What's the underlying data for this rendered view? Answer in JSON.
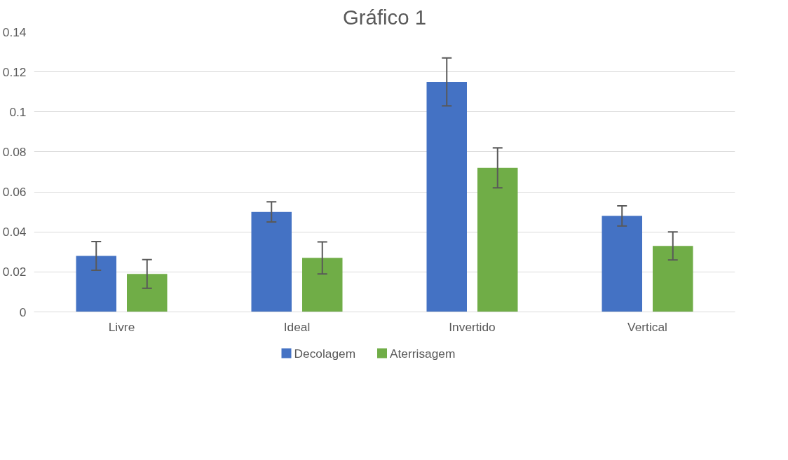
{
  "chart_data": {
    "type": "bar",
    "title": "Gráfico 1",
    "categories": [
      "Livre",
      "Ideal",
      "Invertido",
      "Vertical"
    ],
    "series": [
      {
        "name": "Decolagem",
        "color": "#4472c4",
        "values": [
          0.028,
          0.05,
          0.115,
          0.048
        ],
        "errors": [
          0.0072,
          0.005,
          0.012,
          0.005
        ]
      },
      {
        "name": "Aterrisagem",
        "color": "#70ad47",
        "values": [
          0.019,
          0.027,
          0.072,
          0.033
        ],
        "errors": [
          0.0072,
          0.008,
          0.01,
          0.007
        ]
      }
    ],
    "ylim": [
      0,
      0.14
    ],
    "yticks": [
      0,
      0.02,
      0.04,
      0.06,
      0.08,
      0.1,
      0.12,
      0.14
    ],
    "grid": "y",
    "legend": "bottom"
  }
}
